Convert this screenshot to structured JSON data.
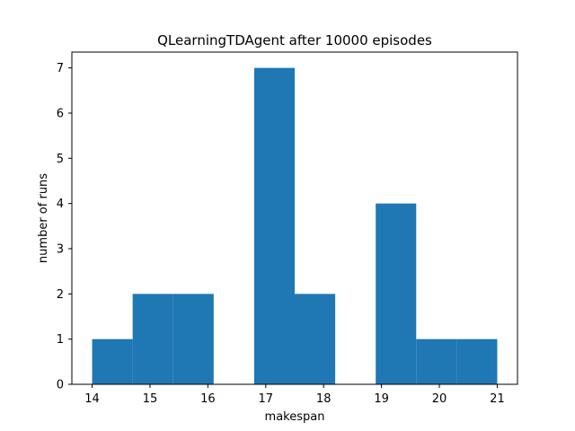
{
  "chart_data": {
    "type": "bar",
    "title": "QLearningTDAgent after 10000 episodes",
    "xlabel": "makespan",
    "ylabel": "number of runs",
    "bin_edges": [
      14.0,
      14.7,
      15.4,
      16.1,
      16.8,
      17.5,
      18.2,
      18.9,
      19.6,
      20.3,
      21.0
    ],
    "values": [
      1,
      2,
      2,
      0,
      7,
      2,
      0,
      4,
      1,
      1
    ],
    "xlim": [
      13.65,
      21.35
    ],
    "ylim": [
      0,
      7.35
    ],
    "xticks": [
      14,
      15,
      16,
      17,
      18,
      19,
      20,
      21
    ],
    "yticks": [
      0,
      1,
      2,
      3,
      4,
      5,
      6,
      7
    ],
    "bar_color": "#1f77b4",
    "grid": false
  }
}
